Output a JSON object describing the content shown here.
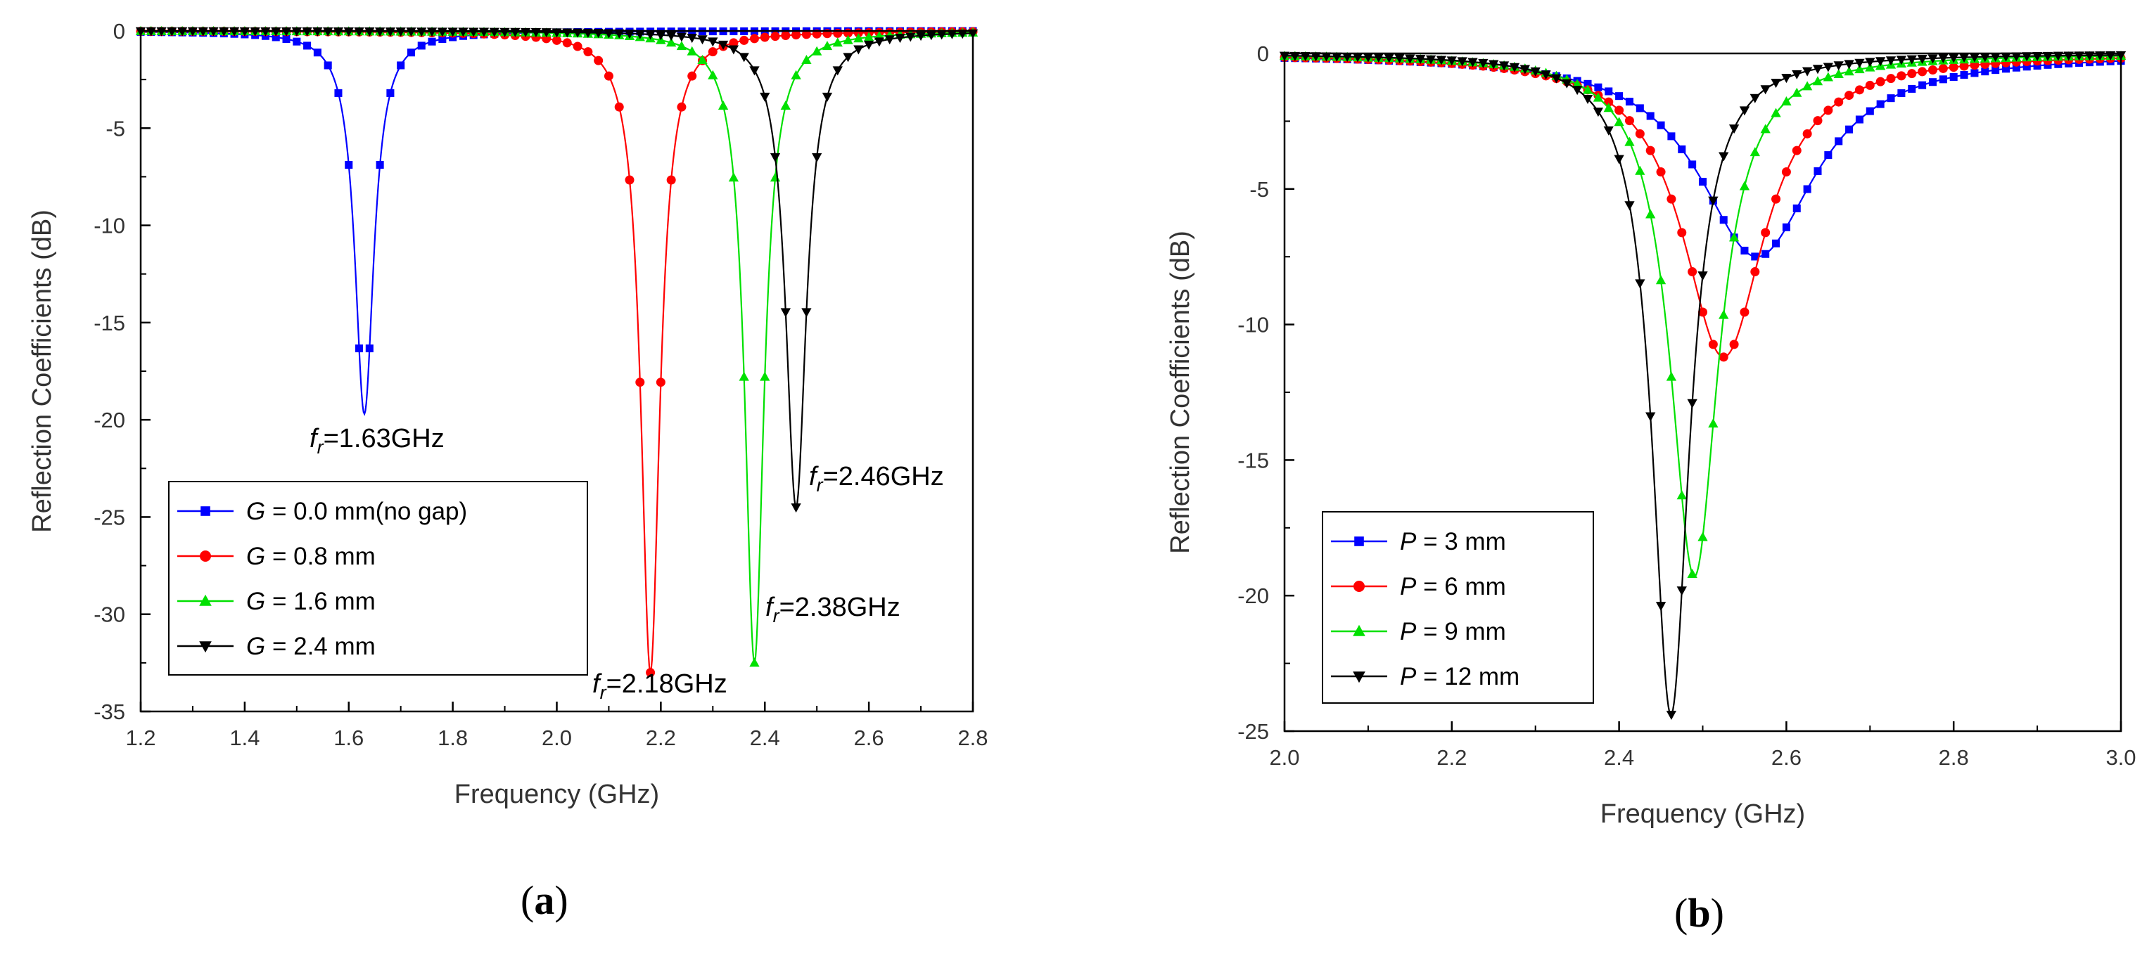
{
  "chart_data": [
    {
      "type": "line",
      "panel_label": {
        "open": "(",
        "letter": "a",
        "close": ")"
      },
      "xlabel": "Frequency (GHz)",
      "ylabel": "Reflection Coefficients (dB)",
      "xlim": [
        1.2,
        2.8
      ],
      "ylim": [
        -35,
        0
      ],
      "xticks": [
        "1.2",
        "1.4",
        "1.6",
        "1.8",
        "2.0",
        "2.2",
        "2.4",
        "2.6",
        "2.8"
      ],
      "yticks": [
        "0",
        "-5",
        "-10",
        "-15",
        "-20",
        "-25",
        "-30",
        "-35"
      ],
      "grid": false,
      "legend_position": "bottom-left",
      "series": [
        {
          "var": "G",
          "rest": " = 0.0 mm(no gap)",
          "color": "#0000ff",
          "marker": "square",
          "resonance": {
            "f": 1.63,
            "depth": -19.7,
            "width": 0.022
          },
          "annotation": {
            "var": "f",
            "sub": "r",
            "text": "=1.63GHz"
          }
        },
        {
          "var": "G",
          "rest": " = 0.8 mm",
          "color": "#ff0000",
          "marker": "circle",
          "resonance": {
            "f": 2.18,
            "depth": -33.0,
            "width": 0.022
          },
          "annotation": {
            "var": "f",
            "sub": "r",
            "text": "=2.18GHz"
          }
        },
        {
          "var": "G",
          "rest": " = 1.6 mm",
          "color": "#00e000",
          "marker": "triangle-up",
          "resonance": {
            "f": 2.38,
            "depth": -32.5,
            "width": 0.022
          },
          "annotation": {
            "var": "f",
            "sub": "r",
            "text": "=2.38GHz"
          }
        },
        {
          "var": "G",
          "rest": " = 2.4 mm",
          "color": "#000000",
          "marker": "triangle-down",
          "resonance": {
            "f": 2.46,
            "depth": -24.5,
            "width": 0.024
          },
          "annotation": {
            "var": "f",
            "sub": "r",
            "text": "=2.46GHz"
          }
        }
      ]
    },
    {
      "type": "line",
      "panel_label": {
        "open": "(",
        "letter": "b",
        "close": ")"
      },
      "xlabel": "Frequency (GHz)",
      "ylabel": "Reflection Coefficients (dB)",
      "xlim": [
        2.0,
        3.0
      ],
      "ylim": [
        -25,
        0
      ],
      "xticks": [
        "2.0",
        "2.2",
        "2.4",
        "2.6",
        "2.8",
        "3.0"
      ],
      "yticks": [
        "0",
        "-5",
        "-10",
        "-15",
        "-20",
        "-25"
      ],
      "grid": false,
      "legend_position": "bottom-left",
      "series": [
        {
          "var": "P",
          "rest": " = 3 mm",
          "color": "#0000ff",
          "marker": "square",
          "resonance": {
            "f": 2.565,
            "depth": -7.5,
            "width": 0.085
          }
        },
        {
          "var": "P",
          "rest": " = 6 mm",
          "color": "#ff0000",
          "marker": "circle",
          "resonance": {
            "f": 2.525,
            "depth": -11.2,
            "width": 0.06
          }
        },
        {
          "var": "P",
          "rest": " = 9 mm",
          "color": "#00e000",
          "marker": "triangle-up",
          "resonance": {
            "f": 2.49,
            "depth": -19.3,
            "width": 0.035
          }
        },
        {
          "var": "P",
          "rest": " = 12 mm",
          "color": "#000000",
          "marker": "triangle-down",
          "resonance": {
            "f": 2.462,
            "depth": -24.4,
            "width": 0.027
          }
        }
      ]
    }
  ]
}
